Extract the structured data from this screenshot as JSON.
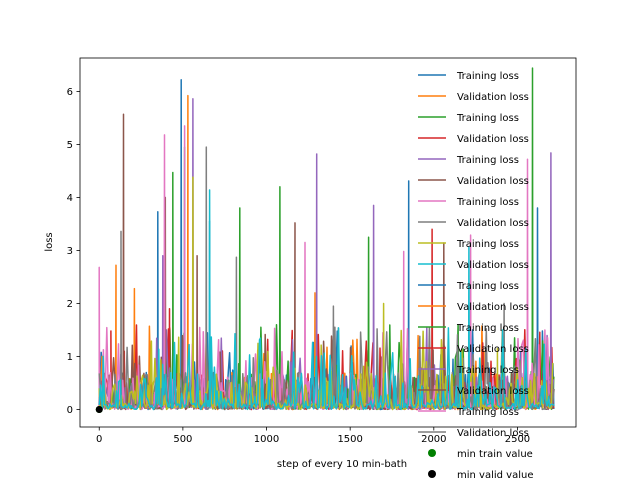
{
  "chart_data": {
    "type": "line",
    "title": "",
    "xlabel": "step of every 10 min-bath",
    "ylabel": "loss",
    "xlim": [
      -115,
      2850
    ],
    "ylim": [
      -0.33,
      6.63
    ],
    "x_ticks": [
      0,
      500,
      1000,
      1500,
      2000,
      2500
    ],
    "y_ticks": [
      0,
      1,
      2,
      3,
      4,
      5,
      6
    ],
    "grid": false,
    "legend_position": "upper-right",
    "legend": [
      {
        "label": "Training loss",
        "color": "#1f77b4",
        "kind": "line"
      },
      {
        "label": "Validation loss",
        "color": "#ff7f0e",
        "kind": "line"
      },
      {
        "label": "Training loss",
        "color": "#2ca02c",
        "kind": "line"
      },
      {
        "label": "Validation loss",
        "color": "#d62728",
        "kind": "line"
      },
      {
        "label": "Training loss",
        "color": "#9467bd",
        "kind": "line"
      },
      {
        "label": "Validation loss",
        "color": "#8c564b",
        "kind": "line"
      },
      {
        "label": "Training loss",
        "color": "#e377c2",
        "kind": "line"
      },
      {
        "label": "Validation loss",
        "color": "#7f7f7f",
        "kind": "line"
      },
      {
        "label": "Training loss",
        "color": "#bcbd22",
        "kind": "line"
      },
      {
        "label": "Validation loss",
        "color": "#17becf",
        "kind": "line"
      },
      {
        "label": "Training loss",
        "color": "#1f77b4",
        "kind": "line"
      },
      {
        "label": "Validation loss",
        "color": "#ff7f0e",
        "kind": "line"
      },
      {
        "label": "Training loss",
        "color": "#2ca02c",
        "kind": "line"
      },
      {
        "label": "Validation loss",
        "color": "#d62728",
        "kind": "line"
      },
      {
        "label": "Training loss",
        "color": "#9467bd",
        "kind": "line"
      },
      {
        "label": "Validation loss",
        "color": "#8c564b",
        "kind": "line"
      },
      {
        "label": "Training loss",
        "color": "#e377c2",
        "kind": "line"
      },
      {
        "label": "Validation loss",
        "color": "#7f7f7f",
        "kind": "line"
      },
      {
        "label": "min train value",
        "color": "#008000",
        "kind": "marker"
      },
      {
        "label": "min valid value",
        "color": "#000000",
        "kind": "marker"
      }
    ],
    "series": [
      {
        "color": "#1f77b4",
        "peaks": [
          [
            490,
            6.22
          ],
          [
            350,
            3.73
          ],
          [
            660,
            3.55
          ],
          [
            1850,
            4.31
          ],
          [
            2620,
            3.8
          ]
        ]
      },
      {
        "color": "#ff7f0e",
        "peaks": [
          [
            100,
            2.72
          ],
          [
            210,
            2.28
          ],
          [
            530,
            5.92
          ],
          [
            1290,
            2.2
          ],
          [
            2300,
            1.1
          ]
        ]
      },
      {
        "color": "#2ca02c",
        "peaks": [
          [
            440,
            4.47
          ],
          [
            510,
            4.95
          ],
          [
            840,
            3.8
          ],
          [
            1080,
            4.2
          ],
          [
            1610,
            3.25
          ],
          [
            2590,
            6.44
          ]
        ]
      },
      {
        "color": "#d62728",
        "peaks": [
          [
            70,
            1.48
          ],
          [
            150,
            1.1
          ],
          [
            420,
            1.9
          ],
          [
            1990,
            3.4
          ]
        ]
      },
      {
        "color": "#9467bd",
        "peaks": [
          [
            380,
            2.9
          ],
          [
            560,
            5.86
          ],
          [
            1300,
            4.82
          ],
          [
            1640,
            3.85
          ],
          [
            2700,
            4.84
          ]
        ]
      },
      {
        "color": "#8c564b",
        "peaks": [
          [
            145,
            5.57
          ],
          [
            395,
            4.0
          ],
          [
            585,
            2.9
          ],
          [
            1170,
            3.52
          ],
          [
            2060,
            3.14
          ]
        ]
      },
      {
        "color": "#e377c2",
        "peaks": [
          [
            0,
            2.68
          ],
          [
            390,
            5.18
          ],
          [
            510,
            5.35
          ],
          [
            1230,
            3.15
          ],
          [
            1820,
            2.98
          ],
          [
            2220,
            3.29
          ],
          [
            2560,
            4.72
          ]
        ]
      },
      {
        "color": "#7f7f7f",
        "peaks": [
          [
            130,
            3.36
          ],
          [
            640,
            4.95
          ],
          [
            820,
            2.87
          ],
          [
            1400,
            1.95
          ],
          [
            2420,
            2.0
          ]
        ]
      },
      {
        "color": "#bcbd22",
        "peaks": [
          [
            560,
            4.38
          ],
          [
            1700,
            2.0
          ],
          [
            2380,
            1.15
          ]
        ]
      },
      {
        "color": "#17becf",
        "peaks": [
          [
            660,
            4.14
          ],
          [
            2210,
            3.07
          ]
        ]
      }
    ],
    "min_points": [
      {
        "label": "min train value",
        "x": 0,
        "y": 0.0,
        "color": "#008000"
      },
      {
        "label": "min valid value",
        "x": 0,
        "y": 0.0,
        "color": "#000000"
      }
    ]
  }
}
